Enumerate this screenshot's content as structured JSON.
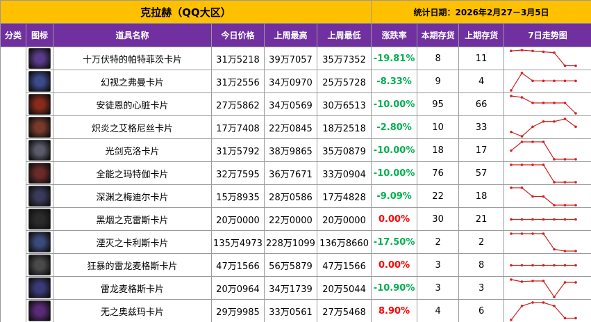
{
  "header": {
    "title": "克拉赫（QQ大区）",
    "date": "统计日期：2026年2月27－3月5日"
  },
  "columns": [
    "分类",
    "图标",
    "道具名称",
    "今日价格",
    "上周最高",
    "上周最低",
    "涨跌率",
    "本期存货",
    "上期存货",
    "7日走势图"
  ],
  "rows": [
    {
      "name": "十万伏特的帕特菲茨卡片",
      "price": "31万5218",
      "high": "39万7057",
      "low": "35万7352",
      "change": "-19.81%",
      "stock": "8",
      "prev": "11",
      "trend": [
        95,
        100,
        95,
        90,
        85,
        10,
        10
      ]
    },
    {
      "name": "幻视之弗曼卡片",
      "price": "31万2556",
      "high": "34万0970",
      "low": "25万5728",
      "change": "-8.33%",
      "stock": "9",
      "prev": "4",
      "trend": [
        0,
        100,
        55,
        55,
        55,
        55,
        55
      ]
    },
    {
      "name": "安徒恩的心脏卡片",
      "price": "27万5862",
      "high": "34万0569",
      "low": "30万6513",
      "change": "-10.00%",
      "stock": "95",
      "prev": "66",
      "trend": [
        100,
        92,
        60,
        60,
        60,
        60,
        0
      ]
    },
    {
      "name": "炽炎之艾格尼丝卡片",
      "price": "17万7408",
      "high": "22万0845",
      "low": "18万2518",
      "change": "-2.80%",
      "stock": "10",
      "prev": "33",
      "trend": [
        25,
        0,
        55,
        85,
        85,
        100,
        55
      ]
    },
    {
      "name": "光剑克洛卡片",
      "price": "31万5792",
      "high": "38万9865",
      "low": "35万0879",
      "change": "-10.00%",
      "stock": "18",
      "prev": "17",
      "trend": [
        50,
        100,
        100,
        100,
        0,
        0,
        0
      ]
    },
    {
      "name": "全能之玛特伽卡片",
      "price": "32万7595",
      "high": "36万7671",
      "low": "33万0904",
      "change": "-10.00%",
      "stock": "76",
      "prev": "57",
      "trend": [
        100,
        100,
        100,
        100,
        0,
        0,
        0
      ]
    },
    {
      "name": "深渊之梅迪尔卡片",
      "price": "15万8935",
      "high": "28万0586",
      "low": "17万4828",
      "change": "-9.09%",
      "stock": "22",
      "prev": "18",
      "trend": [
        100,
        100,
        50,
        50,
        0,
        0,
        0
      ]
    },
    {
      "name": "黑烟之克雷斯卡片",
      "price": "20万0000",
      "high": "22万0000",
      "low": "20万0000",
      "change": "0.00%",
      "stock": "30",
      "prev": "21",
      "trend": [
        50,
        50,
        50,
        50,
        50,
        50,
        50
      ]
    },
    {
      "name": "湮灭之卡利斯卡片",
      "price": "135万4973",
      "high": "228万1099",
      "low": "136万8660",
      "change": "-17.50%",
      "stock": "2",
      "prev": "2",
      "trend": [
        100,
        100,
        100,
        100,
        10,
        0,
        0
      ]
    },
    {
      "name": "狂暴的雷龙麦格斯卡片",
      "price": "47万1566",
      "high": "56万5879",
      "low": "47万1566",
      "change": "0.00%",
      "stock": "3",
      "prev": "8",
      "trend": [
        50,
        50,
        50,
        50,
        50,
        50,
        50
      ]
    },
    {
      "name": "雷龙麦格斯卡片",
      "price": "20万0964",
      "high": "34万1739",
      "low": "20万5044",
      "change": "-10.90%",
      "stock": "3",
      "prev": "3",
      "trend": [
        100,
        88,
        92,
        92,
        0,
        84,
        84
      ]
    },
    {
      "name": "无之奥兹玛卡片",
      "price": "29万9985",
      "high": "33万0561",
      "low": "27万5468",
      "change": "8.90%",
      "stock": "4",
      "prev": "6",
      "trend": [
        0,
        80,
        100,
        100,
        80,
        10,
        10
      ]
    }
  ]
}
